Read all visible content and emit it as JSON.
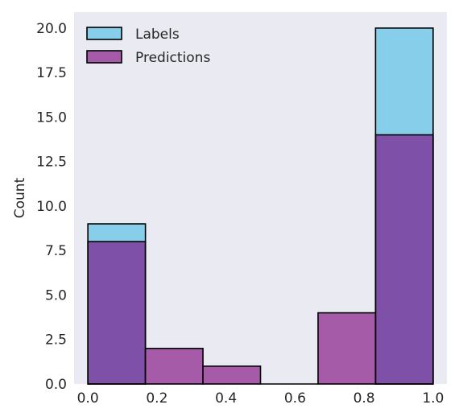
{
  "chart_data": {
    "type": "bar",
    "subtype": "overlaid-histogram",
    "title": "",
    "xlabel": "",
    "ylabel": "Count",
    "xlim": [
      -0.04,
      1.04
    ],
    "ylim": [
      0,
      20.9
    ],
    "bin_edges": [
      0.0,
      0.1667,
      0.3333,
      0.5,
      0.6667,
      0.8333,
      1.0
    ],
    "x_ticks": [
      0.0,
      0.2,
      0.4,
      0.6,
      0.8,
      1.0
    ],
    "x_tick_labels": [
      "0.0",
      "0.2",
      "0.4",
      "0.6",
      "0.8",
      "1.0"
    ],
    "y_ticks": [
      0.0,
      2.5,
      5.0,
      7.5,
      10.0,
      12.5,
      15.0,
      17.5,
      20.0
    ],
    "y_tick_labels": [
      "0.0",
      "2.5",
      "5.0",
      "7.5",
      "10.0",
      "12.5",
      "15.0",
      "17.5",
      "20.0"
    ],
    "grid": false,
    "legend_position": "top-left",
    "background_color": "#eaeaf2",
    "overlap_color": "#7f50a8",
    "series": [
      {
        "name": "Labels",
        "values": [
          9,
          0,
          0,
          0,
          0,
          20
        ],
        "color": "#87ceeb"
      },
      {
        "name": "Predictions",
        "values": [
          8,
          2,
          1,
          0,
          4,
          14
        ],
        "color": "#a65ba8"
      }
    ]
  }
}
